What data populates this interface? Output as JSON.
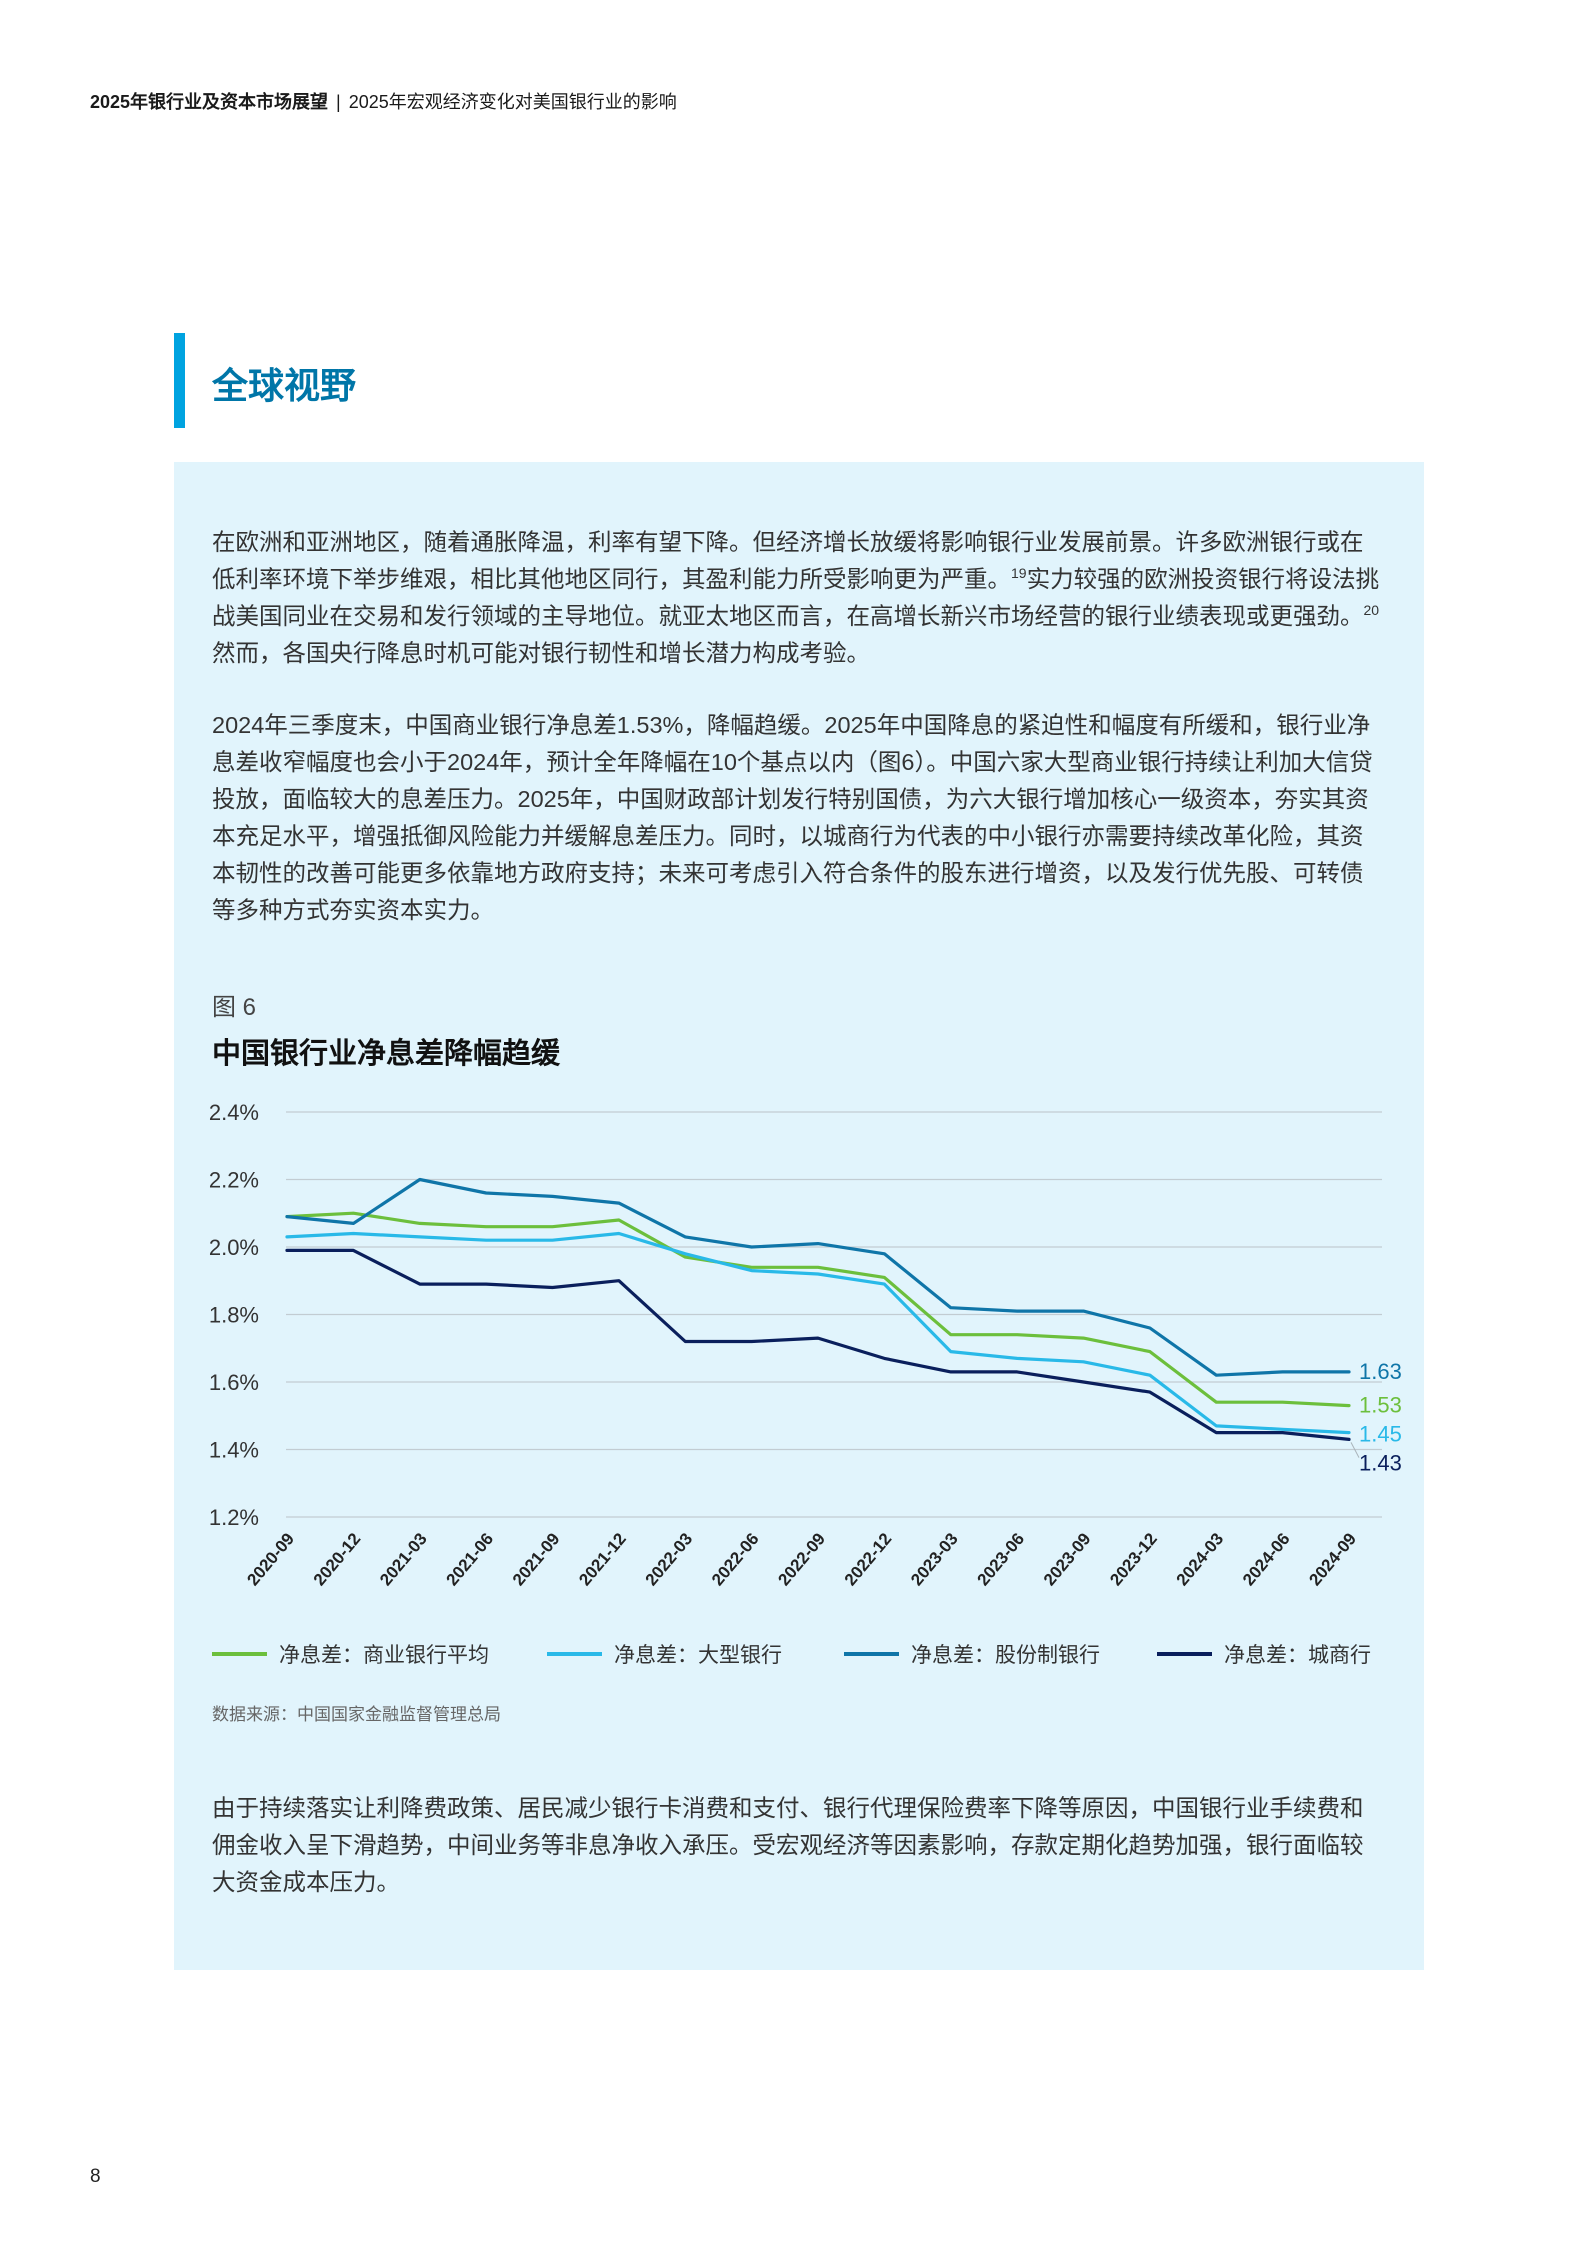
{
  "header": {
    "report_title": "2025年银行业及资本市场展望",
    "separator": "|",
    "chapter_title": "2025年宏观经济变化对美国银行业的影响"
  },
  "section": {
    "title": "全球视野"
  },
  "paragraphs": {
    "p1": {
      "part1": "在欧洲和亚洲地区，随着通胀降温，利率有望下降。但经济增长放缓将影响银行业发展前景。许多欧洲银行或在低利率环境下举步维艰，相比其他地区同行，其盈利能力所受影响更为严重。",
      "ref1": "19",
      "part2": "实力较强的欧洲投资银行将设法挑战美国同业在交易和发行领域的主导地位。就亚太地区而言，在高增长新兴市场经营的银行业绩表现或更强劲。",
      "ref2": "20",
      "part3": "然而，各国央行降息时机可能对银行韧性和增长潜力构成考验。"
    },
    "p2": "2024年三季度末，中国商业银行净息差1.53%，降幅趋缓。2025年中国降息的紧迫性和幅度有所缓和，银行业净息差收窄幅度也会小于2024年，预计全年降幅在10个基点以内（图6）。中国六家大型商业银行持续让利加大信贷投放，面临较大的息差压力。2025年，中国财政部计划发行特别国债，为六大银行增加核心一级资本，夯实其资本充足水平，增强抵御风险能力并缓解息差压力。同时，以城商行为代表的中小银行亦需要持续改革化险，其资本韧性的改善可能更多依靠地方政府支持；未来可考虑引入符合条件的股东进行增资，以及发行优先股、可转债等多种方式夯实资本实力。",
    "p3": "由于持续落实让利降费政策、居民减少银行卡消费和支付、银行代理保险费率下降等原因，中国银行业手续费和佣金收入呈下滑趋势，中间业务等非息净收入承压。受宏观经济等因素影响，存款定期化趋势加强，银行面临较大资金成本压力。"
  },
  "figure": {
    "label": "图 6",
    "title": "中国银行业净息差降幅趋缓",
    "source": "数据来源：中国国家金融监督管理总局"
  },
  "chart_data": {
    "type": "line",
    "title": "中国银行业净息差降幅趋缓",
    "x": [
      "2020-09",
      "2020-12",
      "2021-03",
      "2021-06",
      "2021-09",
      "2021-12",
      "2022-03",
      "2022-06",
      "2022-09",
      "2022-12",
      "2023-03",
      "2023-06",
      "2023-09",
      "2023-12",
      "2024-03",
      "2024-06",
      "2024-09"
    ],
    "ylim": [
      1.2,
      2.4
    ],
    "yticks": [
      1.2,
      1.4,
      1.6,
      1.8,
      2.0,
      2.2,
      2.4
    ],
    "ytick_labels": [
      "1.2%",
      "1.4%",
      "1.6%",
      "1.8%",
      "2.0%",
      "2.2%",
      "2.4%"
    ],
    "grid": true,
    "legend_position": "bottom",
    "series": [
      {
        "name": "净息差：商业银行平均",
        "color": "#6cbf3c",
        "end_label": "1.53",
        "values": [
          2.09,
          2.1,
          2.07,
          2.06,
          2.06,
          2.08,
          1.97,
          1.94,
          1.94,
          1.91,
          1.74,
          1.74,
          1.73,
          1.69,
          1.54,
          1.54,
          1.53
        ]
      },
      {
        "name": "净息差：大型银行",
        "color": "#29b9e8",
        "end_label": "1.45",
        "values": [
          2.03,
          2.04,
          2.03,
          2.02,
          2.02,
          2.04,
          1.98,
          1.93,
          1.92,
          1.89,
          1.69,
          1.67,
          1.66,
          1.62,
          1.47,
          1.46,
          1.45
        ]
      },
      {
        "name": "净息差：股份制银行",
        "color": "#0f75a8",
        "end_label": "1.63",
        "values": [
          2.09,
          2.07,
          2.2,
          2.16,
          2.15,
          2.13,
          2.03,
          2.0,
          2.01,
          1.98,
          1.82,
          1.81,
          1.81,
          1.76,
          1.62,
          1.63,
          1.63
        ]
      },
      {
        "name": "净息差：城商行",
        "color": "#0a1f5c",
        "end_label": "1.43",
        "values": [
          1.99,
          1.99,
          1.89,
          1.89,
          1.88,
          1.9,
          1.72,
          1.72,
          1.73,
          1.67,
          1.63,
          1.63,
          1.6,
          1.57,
          1.45,
          1.45,
          1.43
        ]
      }
    ]
  },
  "page": {
    "number": "8"
  }
}
